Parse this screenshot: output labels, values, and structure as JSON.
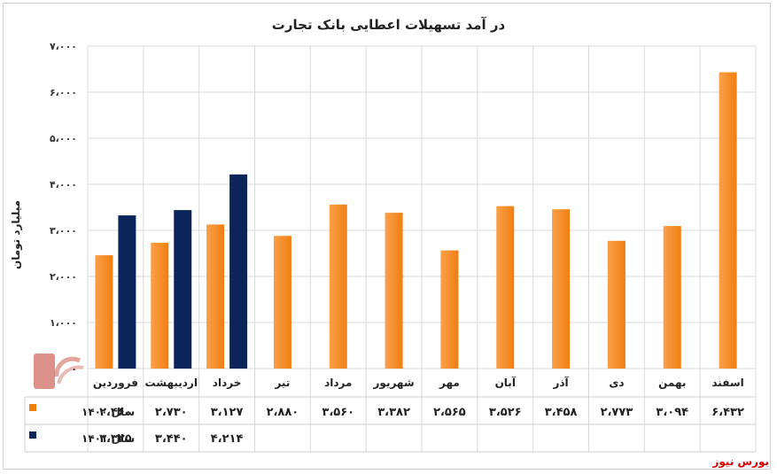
{
  "chart_data": {
    "type": "bar",
    "title": "در آمد تسهیلات اعطایی بانک تجارت",
    "ylabel": "میلیارد تومان",
    "ylim": [
      0,
      7000
    ],
    "yticks": [
      {
        "value": 0,
        "label": "۰"
      },
      {
        "value": 1000,
        "label": "۱،۰۰۰"
      },
      {
        "value": 2000,
        "label": "۲،۰۰۰"
      },
      {
        "value": 3000,
        "label": "۳،۰۰۰"
      },
      {
        "value": 4000,
        "label": "۴،۰۰۰"
      },
      {
        "value": 5000,
        "label": "۵،۰۰۰"
      },
      {
        "value": 6000,
        "label": "۶،۰۰۰"
      },
      {
        "value": 7000,
        "label": "۷،۰۰۰"
      }
    ],
    "grid": true,
    "legend": "data-table-left",
    "categories": [
      "فروردین",
      "اردیبهشت",
      "خرداد",
      "تیر",
      "مرداد",
      "شهریور",
      "مهر",
      "آبان",
      "آذر",
      "دی",
      "بهمن",
      "اسفند"
    ],
    "series": [
      {
        "name": "سال ۱۴۰۰",
        "color": "#f07f12",
        "values": [
          2460,
          2730,
          3127,
          2880,
          3560,
          3382,
          2565,
          3526,
          3458,
          2773,
          3094,
          6432
        ],
        "labels": [
          "۲،۴۶۰",
          "۲،۷۳۰",
          "۳،۱۲۷",
          "۲،۸۸۰",
          "۳،۵۶۰",
          "۳،۳۸۲",
          "۲،۵۶۵",
          "۳،۵۲۶",
          "۳،۴۵۸",
          "۲،۷۷۳",
          "۳،۰۹۴",
          "۶،۴۳۲"
        ]
      },
      {
        "name": "سال ۱۴۰۱",
        "color": "#0b2459",
        "values": [
          3325,
          3440,
          4214,
          null,
          null,
          null,
          null,
          null,
          null,
          null,
          null,
          null
        ],
        "labels": [
          "۳،۳۲۵",
          "۳،۴۴۰",
          "۴،۲۱۴",
          "",
          "",
          "",
          "",
          "",
          "",
          "",
          "",
          ""
        ]
      }
    ]
  },
  "source": "بورس نیوز",
  "colors": {
    "orange": "#f07f12",
    "navy": "#0b2459",
    "grid": "#d9d9d9",
    "source_red": "#d40000"
  }
}
